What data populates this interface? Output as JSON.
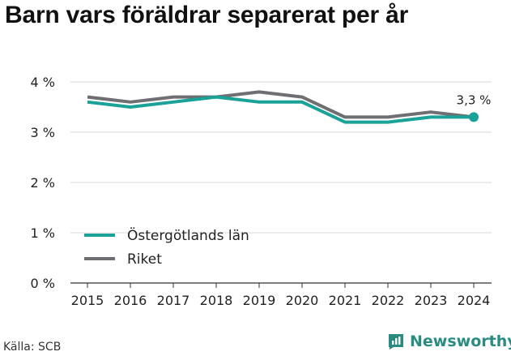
{
  "title": "Barn vars föräldrar separerat per år",
  "source": "Källa: SCB",
  "brand": {
    "name": "Newsworthy",
    "icon": "newsworthy-logo-icon",
    "color": "#2a8c80"
  },
  "chart_data": {
    "type": "line",
    "title": "Barn vars föräldrar separerat per år",
    "xlabel": "",
    "ylabel": "",
    "x": [
      "2015",
      "2016",
      "2017",
      "2018",
      "2019",
      "2020",
      "2021",
      "2022",
      "2023",
      "2024"
    ],
    "ylim": [
      0,
      4
    ],
    "yticks": [
      0,
      1,
      2,
      3,
      4
    ],
    "ytick_labels": [
      "0 %",
      "1 %",
      "2 %",
      "3 %",
      "4 %"
    ],
    "grid": true,
    "legend_position": "bottom-left",
    "series": [
      {
        "name": "Östergötlands län",
        "color": "#1aa198",
        "values": [
          3.6,
          3.5,
          3.6,
          3.7,
          3.6,
          3.6,
          3.2,
          3.2,
          3.3,
          3.3
        ]
      },
      {
        "name": "Riket",
        "color": "#6e6e73",
        "values": [
          3.7,
          3.6,
          3.7,
          3.7,
          3.8,
          3.7,
          3.3,
          3.3,
          3.4,
          3.3
        ]
      }
    ],
    "annotation": {
      "text": "3,3 %",
      "series": 0,
      "index": 9
    }
  }
}
